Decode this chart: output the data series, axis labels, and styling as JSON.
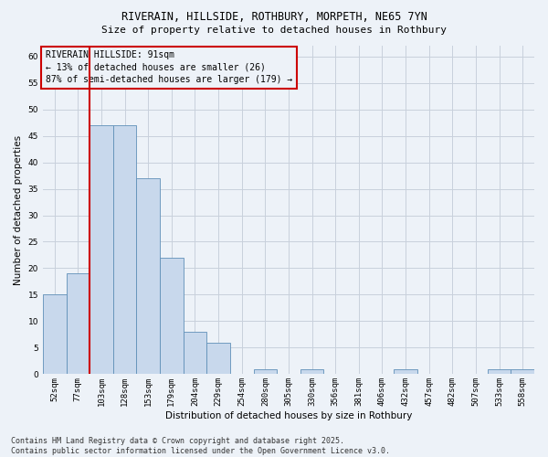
{
  "title1": "RIVERAIN, HILLSIDE, ROTHBURY, MORPETH, NE65 7YN",
  "title2": "Size of property relative to detached houses in Rothbury",
  "xlabel": "Distribution of detached houses by size in Rothbury",
  "ylabel": "Number of detached properties",
  "bar_color": "#c8d8ec",
  "bar_edge_color": "#6090b8",
  "grid_color": "#c8d0dc",
  "bg_color": "#edf2f8",
  "categories": [
    "52sqm",
    "77sqm",
    "103sqm",
    "128sqm",
    "153sqm",
    "179sqm",
    "204sqm",
    "229sqm",
    "254sqm",
    "280sqm",
    "305sqm",
    "330sqm",
    "356sqm",
    "381sqm",
    "406sqm",
    "432sqm",
    "457sqm",
    "482sqm",
    "507sqm",
    "533sqm",
    "558sqm"
  ],
  "values": [
    15,
    19,
    47,
    47,
    37,
    22,
    8,
    6,
    0,
    1,
    0,
    1,
    0,
    0,
    0,
    1,
    0,
    0,
    0,
    1,
    1
  ],
  "ylim": [
    0,
    62
  ],
  "yticks": [
    0,
    5,
    10,
    15,
    20,
    25,
    30,
    35,
    40,
    45,
    50,
    55,
    60
  ],
  "property_line_x": 1.5,
  "annotation_text": "RIVERAIN HILLSIDE: 91sqm\n← 13% of detached houses are smaller (26)\n87% of semi-detached houses are larger (179) →",
  "footer": "Contains HM Land Registry data © Crown copyright and database right 2025.\nContains public sector information licensed under the Open Government Licence v3.0.",
  "annotation_box_color": "#cc0000",
  "property_line_color": "#cc0000",
  "title_fontsize": 8.5,
  "subtitle_fontsize": 8.0,
  "axis_label_fontsize": 7.5,
  "tick_fontsize": 6.5,
  "annotation_fontsize": 7.0,
  "footer_fontsize": 6.0
}
